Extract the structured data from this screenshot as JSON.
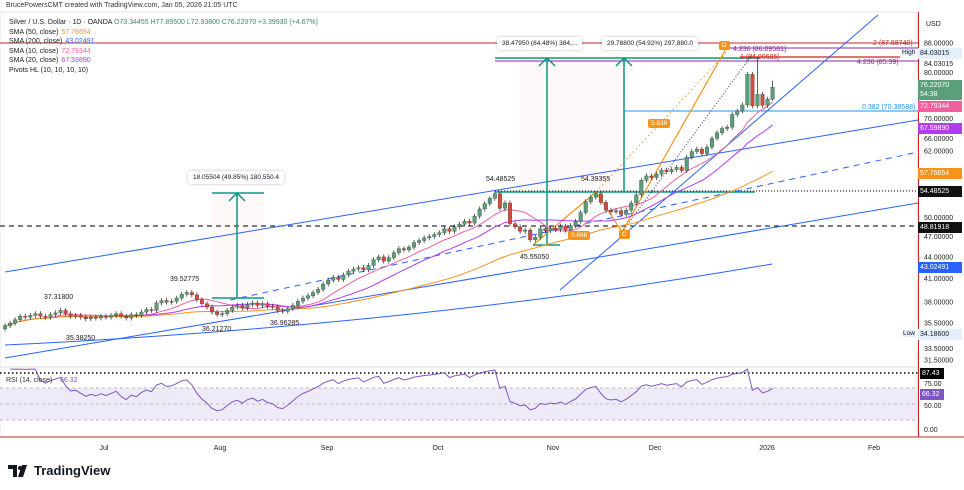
{
  "header": {
    "credit": "BrucePowersCMT created with TradingView.com, Jan 05, 2026 21:05 UTC"
  },
  "legend": {
    "symbol": "Silver / U.S. Dollar · 1D · OANDA",
    "ohlc": "O73.34455 H77.89500 L72.93800 C76.22070 +3.39930 (+4.67%)",
    "indicators": [
      {
        "label": "SMA (50, close)",
        "value": "57.76654",
        "color": "#f7931a"
      },
      {
        "label": "SMA (200, close)",
        "value": "43.02491",
        "color": "#2962ff"
      },
      {
        "label": "SMA (10, close)",
        "value": "72.79344",
        "color": "#f0609e"
      },
      {
        "label": "SMA (20, close)",
        "value": "67.59890",
        "color": "#b13cf0"
      },
      {
        "label": "Pivots HL (10, 10, 10, 10)",
        "value": "",
        "color": "#222"
      }
    ]
  },
  "chart_data": {
    "type": "candlestick",
    "title": "Silver / U.S. Dollar · 1D · OANDA",
    "y_scale": "log",
    "ylim": [
      31,
      95
    ],
    "currency": "USD",
    "x_tick_labels": [
      "Jul",
      "Aug",
      "Sep",
      "Oct",
      "Nov",
      "Dec",
      "2026",
      "Feb"
    ],
    "y_tick_labels": [
      "88.00000",
      "84.03015",
      "80.00000",
      "70.00000",
      "66.00000",
      "62.00000",
      "50.00000",
      "47.00000",
      "44.00000",
      "41.00000",
      "38.00000",
      "35.50000",
      "33.50000",
      "31.50000"
    ],
    "closes": [
      35.2,
      35.5,
      35.9,
      36.3,
      36.2,
      36.4,
      36.6,
      36.3,
      36.2,
      36.5,
      36.7,
      37.0,
      36.6,
      36.3,
      36.4,
      36.2,
      36.0,
      36.2,
      36.1,
      36.3,
      36.2,
      36.4,
      36.6,
      36.3,
      36.1,
      36.5,
      36.4,
      36.8,
      37.1,
      37.0,
      37.9,
      38.2,
      38.0,
      38.1,
      38.5,
      39.0,
      39.2,
      38.9,
      38.3,
      37.8,
      37.4,
      36.8,
      36.5,
      36.6,
      37.0,
      37.4,
      37.6,
      37.3,
      37.7,
      37.9,
      37.6,
      37.8,
      37.5,
      37.4,
      37.0,
      36.9,
      37.2,
      37.6,
      38.1,
      38.5,
      38.8,
      39.2,
      39.6,
      40.3,
      40.8,
      41.2,
      40.9,
      41.5,
      42.0,
      42.3,
      42.5,
      42.2,
      42.8,
      43.6,
      44.0,
      43.4,
      43.9,
      44.6,
      45.2,
      45.0,
      45.4,
      46.1,
      46.4,
      46.8,
      47.0,
      47.3,
      47.6,
      48.2,
      47.8,
      48.5,
      48.9,
      49.4,
      49.1,
      50.2,
      51.4,
      52.3,
      53.2,
      54.0,
      51.5,
      52.4,
      49.0,
      48.5,
      47.8,
      48.0,
      46.5,
      46.9,
      48.2,
      47.9,
      48.3,
      48.1,
      48.6,
      48.0,
      48.7,
      49.4,
      50.8,
      52.6,
      53.4,
      54.0,
      52.5,
      51.2,
      50.9,
      51.1,
      50.5,
      51.2,
      52.4,
      53.8,
      56.4,
      57.2,
      56.9,
      57.5,
      58.3,
      58.0,
      58.4,
      58.8,
      58.2,
      60.8,
      61.9,
      62.4,
      61.5,
      62.8,
      64.6,
      65.8,
      66.7,
      67.0,
      69.8,
      70.6,
      72.0,
      79.5,
      71.8,
      74.5,
      71.9,
      73.34455,
      76.2207
    ],
    "last_bar": {
      "open": 73.34455,
      "high": 77.895,
      "low": 72.938,
      "close": 76.2207
    },
    "pivot_labels": [
      "37.31800",
      "35.38250",
      "39.52775",
      "36.21270",
      "36.96285",
      "54.48525",
      "45.55050",
      "54.39355"
    ],
    "horizontal_levels": {
      "resistance": "54.48525",
      "support": "48.81918",
      "fib_0382": "0.382 (70.38588)",
      "fib_2": "2 (87.98740)",
      "fib_4236_a": "4.236 (86.09581)",
      "fib_1": "1 (84.00685)",
      "fib_4236_b": "4.236 (85.39)"
    },
    "measurements": [
      "38.47950 (84.48%) 384,...",
      "29.78800 (54.92%) 297,880.0",
      "18.05504 (49.85%) 180,550.4"
    ],
    "pattern_labels": {
      "d": "D",
      "c": "C",
      "ratio_bc": "0.688",
      "ratio_cd": "5.838"
    },
    "price_badges": {
      "last": "76.22070",
      "countdown": "54:38",
      "sma10": "72.79344",
      "sma20": "67.59890",
      "sma50": "57.76654",
      "sma200": "43.02491",
      "resistance": "54.48525",
      "support": "48.81918",
      "high_label": "High",
      "high": "84.03015",
      "low_label": "Low",
      "low": "34.18600",
      "axis_unit": "USD"
    },
    "rsi": {
      "label": "RSI (14, close)",
      "value": "66.32",
      "max_marker": "87.43",
      "ticks": [
        "75.00",
        "50.00",
        "0.00"
      ],
      "band": [
        30,
        70
      ]
    }
  },
  "footer": {
    "brand": "TradingView"
  },
  "colors": {
    "up": "#5b9e7a",
    "down": "#d9483b",
    "sma10": "#f0609e",
    "sma20": "#b13cf0",
    "sma50": "#f7931a",
    "sma200": "#2962ff",
    "teal": "#089981",
    "rsi": "#7e57c2"
  }
}
